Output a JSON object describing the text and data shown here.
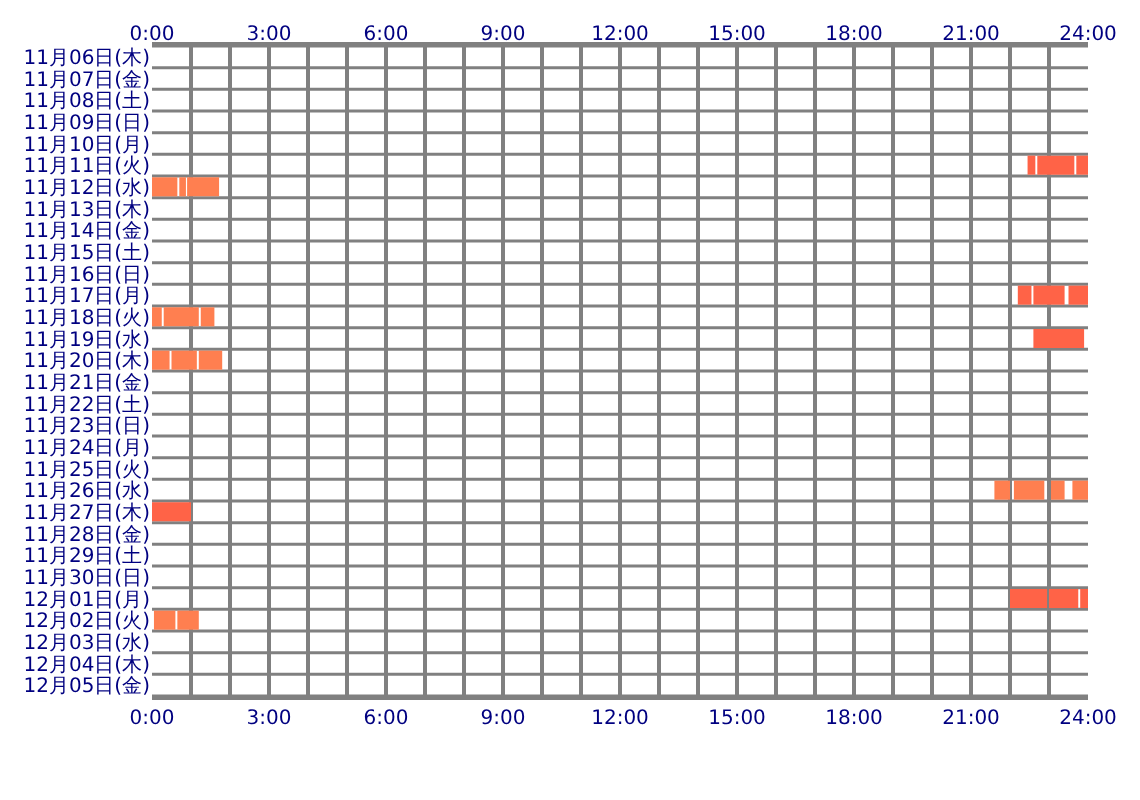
{
  "chart_data": {
    "type": "bar",
    "orientation": "horizontal",
    "categories": [
      "11月06日(木)",
      "11月07日(金)",
      "11月08日(土)",
      "11月09日(日)",
      "11月10日(月)",
      "11月11日(火)",
      "11月12日(水)",
      "11月13日(木)",
      "11月14日(金)",
      "11月15日(土)",
      "11月16日(日)",
      "11月17日(月)",
      "11月18日(火)",
      "11月19日(水)",
      "11月20日(木)",
      "11月21日(金)",
      "11月22日(土)",
      "11月23日(日)",
      "11月24日(月)",
      "11月25日(火)",
      "11月26日(水)",
      "11月27日(木)",
      "11月28日(金)",
      "11月29日(土)",
      "11月30日(日)",
      "12月01日(月)",
      "12月02日(火)",
      "12月03日(水)",
      "12月04日(木)",
      "12月05日(金)"
    ],
    "series": [
      {
        "base": [
          null,
          null,
          null,
          null,
          null,
          22.45,
          0,
          null,
          null,
          null,
          null,
          22.2,
          0,
          22.6,
          0,
          null,
          null,
          null,
          null,
          null,
          21.6,
          0,
          null,
          null,
          null,
          22.0,
          0.05,
          null,
          null,
          null
        ],
        "values": [
          null,
          null,
          null,
          null,
          null,
          0.2,
          0.65,
          null,
          null,
          null,
          null,
          0.35,
          0.25,
          1.3,
          0.45,
          null,
          null,
          null,
          null,
          null,
          0.4,
          1.0,
          null,
          null,
          null,
          0.95,
          0.55,
          null,
          null,
          null
        ],
        "colors": [
          null,
          null,
          null,
          null,
          null,
          "#ff6347",
          "#ff7f50",
          null,
          null,
          null,
          null,
          "#ff6347",
          "#ff7f50",
          "#ff6347",
          "#ff7f50",
          null,
          null,
          null,
          null,
          null,
          "#ff7f50",
          "#ff6347",
          null,
          null,
          null,
          "#ff6347",
          "#ff7f50",
          null,
          null,
          null
        ]
      },
      {
        "base": [
          null,
          null,
          null,
          null,
          null,
          22.7,
          0.7,
          null,
          null,
          null,
          null,
          22.6,
          0.3,
          null,
          0.5,
          null,
          null,
          null,
          null,
          null,
          22.1,
          null,
          null,
          null,
          null,
          23.0,
          0.65,
          null,
          null,
          null
        ],
        "values": [
          null,
          null,
          null,
          null,
          null,
          0.95,
          0.17,
          null,
          null,
          null,
          null,
          0.8,
          0.9,
          null,
          0.65,
          null,
          null,
          null,
          null,
          null,
          0.78,
          null,
          null,
          null,
          null,
          0.75,
          0.55,
          null,
          null,
          null
        ],
        "colors": [
          null,
          null,
          null,
          null,
          null,
          "#ff6347",
          "#ff7f50",
          null,
          null,
          null,
          null,
          "#ff6347",
          "#ff7f50",
          null,
          "#ff7f50",
          null,
          null,
          null,
          null,
          null,
          "#ff7f50",
          null,
          null,
          null,
          null,
          "#ff6347",
          "#ff7f50",
          null,
          null,
          null
        ]
      },
      {
        "base": [
          null,
          null,
          null,
          null,
          null,
          23.7,
          0.9,
          null,
          null,
          null,
          null,
          23.5,
          1.25,
          null,
          1.2,
          null,
          null,
          null,
          null,
          null,
          23.05,
          null,
          null,
          null,
          null,
          23.8,
          null,
          null,
          null,
          null
        ],
        "values": [
          null,
          null,
          null,
          null,
          null,
          0.3,
          0.82,
          null,
          null,
          null,
          null,
          0.5,
          0.35,
          null,
          0.6,
          null,
          null,
          null,
          null,
          null,
          0.35,
          null,
          null,
          null,
          null,
          0.2,
          null,
          null,
          null,
          null
        ],
        "colors": [
          null,
          null,
          null,
          null,
          null,
          "#ff6347",
          "#ff7f50",
          null,
          null,
          null,
          null,
          "#ff6347",
          "#ff7f50",
          null,
          "#ff7f50",
          null,
          null,
          null,
          null,
          null,
          "#ff7f50",
          null,
          null,
          null,
          null,
          "#ff6347",
          null,
          null,
          null,
          null
        ]
      },
      {
        "base": [
          null,
          null,
          null,
          null,
          null,
          null,
          null,
          null,
          null,
          null,
          null,
          null,
          null,
          null,
          null,
          null,
          null,
          null,
          null,
          null,
          23.6,
          null,
          null,
          null,
          null,
          null,
          null,
          null,
          null,
          null
        ],
        "values": [
          null,
          null,
          null,
          null,
          null,
          null,
          null,
          null,
          null,
          null,
          null,
          null,
          null,
          null,
          null,
          null,
          null,
          null,
          null,
          null,
          0.4,
          null,
          null,
          null,
          null,
          null,
          null,
          null,
          null,
          null
        ],
        "colors": [
          null,
          null,
          null,
          null,
          null,
          null,
          null,
          null,
          null,
          null,
          null,
          null,
          null,
          null,
          null,
          null,
          null,
          null,
          null,
          null,
          "#ff7f50",
          null,
          null,
          null,
          null,
          null,
          null,
          null,
          null,
          null
        ]
      }
    ],
    "xlim": [
      0,
      24
    ],
    "xticks": [
      {
        "value": 0,
        "label": "0:00"
      },
      {
        "value": 1,
        "label": null
      },
      {
        "value": 2,
        "label": null
      },
      {
        "value": 3,
        "label": "3:00"
      },
      {
        "value": 4,
        "label": null
      },
      {
        "value": 5,
        "label": null
      },
      {
        "value": 6,
        "label": "6:00"
      },
      {
        "value": 7,
        "label": null
      },
      {
        "value": 8,
        "label": null
      },
      {
        "value": 9,
        "label": "9:00"
      },
      {
        "value": 10,
        "label": null
      },
      {
        "value": 11,
        "label": null
      },
      {
        "value": 12,
        "label": "12:00"
      },
      {
        "value": 13,
        "label": null
      },
      {
        "value": 14,
        "label": null
      },
      {
        "value": 15,
        "label": "15:00"
      },
      {
        "value": 16,
        "label": null
      },
      {
        "value": 17,
        "label": null
      },
      {
        "value": 18,
        "label": "18:00"
      },
      {
        "value": 19,
        "label": null
      },
      {
        "value": 20,
        "label": null
      },
      {
        "value": 21,
        "label": "21:00"
      },
      {
        "value": 22,
        "label": null
      },
      {
        "value": 23,
        "label": null
      },
      {
        "value": 24,
        "label": "24:00"
      }
    ],
    "x2lim": [
      0,
      24
    ],
    "x2ticks": [
      {
        "value": 0,
        "label": "0:00"
      },
      {
        "value": 1,
        "label": null
      },
      {
        "value": 2,
        "label": null
      },
      {
        "value": 3,
        "label": "3:00"
      },
      {
        "value": 4,
        "label": null
      },
      {
        "value": 5,
        "label": null
      },
      {
        "value": 6,
        "label": "6:00"
      },
      {
        "value": 7,
        "label": null
      },
      {
        "value": 8,
        "label": null
      },
      {
        "value": 9,
        "label": "9:00"
      },
      {
        "value": 10,
        "label": null
      },
      {
        "value": 11,
        "label": null
      },
      {
        "value": 12,
        "label": "12:00"
      },
      {
        "value": 13,
        "label": null
      },
      {
        "value": 14,
        "label": null
      },
      {
        "value": 15,
        "label": "15:00"
      },
      {
        "value": 16,
        "label": null
      },
      {
        "value": 17,
        "label": null
      },
      {
        "value": 18,
        "label": "18:00"
      },
      {
        "value": 19,
        "label": null
      },
      {
        "value": 20,
        "label": null
      },
      {
        "value": 21,
        "label": "21:00"
      },
      {
        "value": 22,
        "label": null
      },
      {
        "value": 23,
        "label": null
      },
      {
        "value": 24,
        "label": "24:00"
      }
    ],
    "grid": true
  }
}
